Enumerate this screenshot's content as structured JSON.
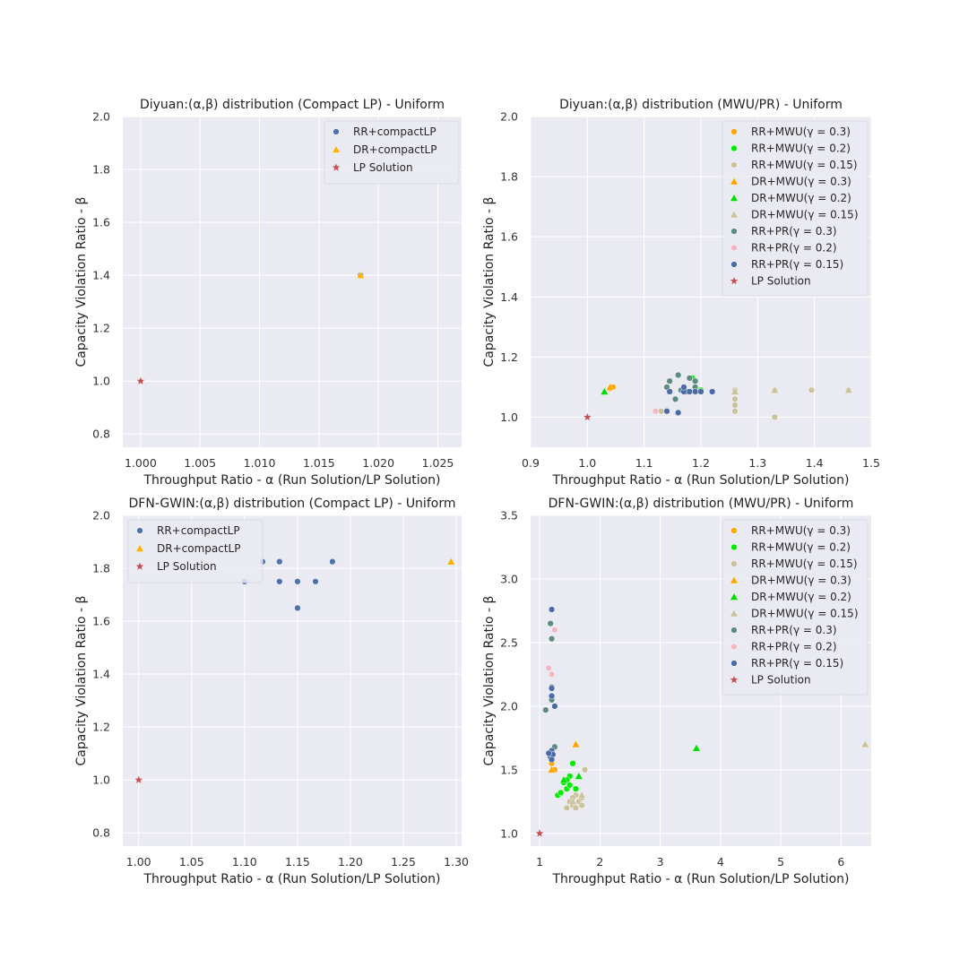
{
  "colors": {
    "plot_bg": "#eaeaf2",
    "grid": "#ffffff",
    "legend_bg": "#eaeaf2",
    "legend_edge": "#d6d6e0"
  },
  "chart_data": [
    {
      "type": "scatter",
      "title": "Diyuan:(α,β) distribution (Compact LP) - Uniform",
      "xlabel": "Throughput Ratio - α (Run Solution/LP Solution)",
      "ylabel": "Capacity Violation Ratio - β",
      "xlim": [
        0.9985,
        1.027
      ],
      "ylim": [
        0.75,
        2.0
      ],
      "xticks": [
        1.0,
        1.005,
        1.01,
        1.015,
        1.02,
        1.025
      ],
      "xtick_labels": [
        "1.000",
        "1.005",
        "1.010",
        "1.015",
        "1.020",
        "1.025"
      ],
      "yticks": [
        0.8,
        1.0,
        1.2,
        1.4,
        1.6,
        1.8,
        2.0
      ],
      "ytick_labels": [
        "0.8",
        "1.0",
        "1.2",
        "1.4",
        "1.6",
        "1.8",
        "2.0"
      ],
      "legend_position": "top-right",
      "series": [
        {
          "name": "RR+compactLP",
          "marker": "circle",
          "color": "#4c72b0",
          "points": [
            [
              1.0185,
              1.4
            ]
          ]
        },
        {
          "name": "DR+compactLP",
          "marker": "triangle",
          "color": "#ffb000",
          "points": [
            [
              1.0185,
              1.4
            ]
          ]
        },
        {
          "name": "LP Solution",
          "marker": "star",
          "color": "#c44e52",
          "points": [
            [
              1.0,
              1.0
            ]
          ]
        }
      ]
    },
    {
      "type": "scatter",
      "title": "Diyuan:(α,β) distribution (MWU/PR) - Uniform",
      "xlabel": "Throughput Ratio - α (Run Solution/LP Solution)",
      "ylabel": "Capacity Violation Ratio - β",
      "xlim": [
        0.9,
        1.5
      ],
      "ylim": [
        0.9,
        2.0
      ],
      "xticks": [
        0.9,
        1.0,
        1.1,
        1.2,
        1.3,
        1.4,
        1.5
      ],
      "xtick_labels": [
        "0.9",
        "1.0",
        "1.1",
        "1.2",
        "1.3",
        "1.4",
        "1.5"
      ],
      "yticks": [
        1.0,
        1.2,
        1.4,
        1.6,
        1.8,
        2.0
      ],
      "ytick_labels": [
        "1.0",
        "1.2",
        "1.4",
        "1.6",
        "1.8",
        "2.0"
      ],
      "legend_position": "top-right",
      "series": [
        {
          "name": "RR+MWU(γ = 0.3)",
          "marker": "circle",
          "color": "#ffa500",
          "points": [
            [
              1.04,
              1.095
            ],
            [
              1.045,
              1.1
            ]
          ]
        },
        {
          "name": "RR+MWU(γ = 0.2)",
          "marker": "circle",
          "color": "#00ee00",
          "points": [
            [
              1.19,
              1.1
            ],
            [
              1.185,
              1.13
            ],
            [
              1.2,
              1.09
            ]
          ]
        },
        {
          "name": "RR+MWU(γ = 0.15)",
          "marker": "circle",
          "color": "#c9c29c",
          "points": [
            [
              1.26,
              1.09
            ],
            [
              1.26,
              1.06
            ],
            [
              1.26,
              1.04
            ],
            [
              1.26,
              1.02
            ],
            [
              1.33,
              1.09
            ],
            [
              1.33,
              1.0
            ],
            [
              1.395,
              1.09
            ],
            [
              1.46,
              1.09
            ],
            [
              1.13,
              1.02
            ]
          ]
        },
        {
          "name": "DR+MWU(γ = 0.3)",
          "marker": "triangle",
          "color": "#ffa500",
          "points": [
            [
              1.04,
              1.1
            ]
          ]
        },
        {
          "name": "DR+MWU(γ = 0.2)",
          "marker": "triangle",
          "color": "#00dd00",
          "points": [
            [
              1.03,
              1.085
            ]
          ]
        },
        {
          "name": "DR+MWU(γ = 0.15)",
          "marker": "triangle",
          "color": "#c9c29c",
          "points": [
            [
              1.26,
              1.085
            ],
            [
              1.33,
              1.09
            ],
            [
              1.46,
              1.09
            ]
          ]
        },
        {
          "name": "RR+PR(γ = 0.3)",
          "marker": "circle",
          "color": "#5b8c7d",
          "points": [
            [
              1.16,
              1.14
            ],
            [
              1.18,
              1.13
            ],
            [
              1.19,
              1.12
            ],
            [
              1.19,
              1.1
            ],
            [
              1.175,
              1.085
            ],
            [
              1.14,
              1.1
            ],
            [
              1.155,
              1.06
            ],
            [
              1.145,
              1.12
            ],
            [
              1.165,
              1.09
            ]
          ]
        },
        {
          "name": "RR+PR(γ = 0.2)",
          "marker": "circle",
          "color": "#f4b6c2",
          "points": [
            [
              1.12,
              1.02
            ],
            [
              1.2,
              1.085
            ],
            [
              1.22,
              1.085
            ]
          ]
        },
        {
          "name": "RR+PR(γ = 0.15)",
          "marker": "circle",
          "color": "#4a6aa8",
          "points": [
            [
              1.16,
              1.015
            ],
            [
              1.14,
              1.02
            ],
            [
              1.145,
              1.085
            ],
            [
              1.17,
              1.085
            ],
            [
              1.18,
              1.085
            ],
            [
              1.19,
              1.085
            ],
            [
              1.2,
              1.085
            ],
            [
              1.22,
              1.085
            ],
            [
              1.17,
              1.1
            ]
          ]
        },
        {
          "name": "LP Solution",
          "marker": "star",
          "color": "#c44e52",
          "points": [
            [
              1.0,
              1.0
            ]
          ]
        }
      ]
    },
    {
      "type": "scatter",
      "title": "DFN-GWIN:(α,β) distribution (Compact LP) - Uniform",
      "xlabel": "Throughput Ratio - α (Run Solution/LP Solution)",
      "ylabel": "Capacity Violation Ratio - β",
      "xlim": [
        0.985,
        1.305
      ],
      "ylim": [
        0.75,
        2.0
      ],
      "xticks": [
        1.0,
        1.05,
        1.1,
        1.15,
        1.2,
        1.25,
        1.3
      ],
      "xtick_labels": [
        "1.00",
        "1.05",
        "1.10",
        "1.15",
        "1.20",
        "1.25",
        "1.30"
      ],
      "yticks": [
        0.8,
        1.0,
        1.2,
        1.4,
        1.6,
        1.8,
        2.0
      ],
      "ytick_labels": [
        "0.8",
        "1.0",
        "1.2",
        "1.4",
        "1.6",
        "1.8",
        "2.0"
      ],
      "legend_position": "top-left",
      "series": [
        {
          "name": "RR+compactLP",
          "marker": "circle",
          "color": "#4c72b0",
          "points": [
            [
              1.1,
              1.75
            ],
            [
              1.117,
              1.825
            ],
            [
              1.133,
              1.825
            ],
            [
              1.133,
              1.75
            ],
            [
              1.15,
              1.75
            ],
            [
              1.15,
              1.65
            ],
            [
              1.167,
              1.75
            ],
            [
              1.183,
              1.825
            ]
          ]
        },
        {
          "name": "DR+compactLP",
          "marker": "triangle",
          "color": "#ffb000",
          "points": [
            [
              1.295,
              1.825
            ]
          ]
        },
        {
          "name": "LP Solution",
          "marker": "star",
          "color": "#c44e52",
          "points": [
            [
              1.0,
              1.0
            ]
          ]
        }
      ]
    },
    {
      "type": "scatter",
      "title": "DFN-GWIN:(α,β) distribution (MWU/PR) - Uniform",
      "xlabel": "Throughput Ratio - α (Run Solution/LP Solution)",
      "ylabel": "Capacity Violation Ratio - β",
      "xlim": [
        0.85,
        6.5
      ],
      "ylim": [
        0.9,
        3.5
      ],
      "xticks": [
        1,
        2,
        3,
        4,
        5,
        6
      ],
      "xtick_labels": [
        "1",
        "2",
        "3",
        "4",
        "5",
        "6"
      ],
      "yticks": [
        1.0,
        1.5,
        2.0,
        2.5,
        3.0,
        3.5
      ],
      "ytick_labels": [
        "1.0",
        "1.5",
        "2.0",
        "2.5",
        "3.0",
        "3.5"
      ],
      "legend_position": "top-right",
      "series": [
        {
          "name": "RR+MWU(γ = 0.3)",
          "marker": "circle",
          "color": "#ffa500",
          "points": [
            [
              1.2,
              1.55
            ],
            [
              1.25,
              1.5
            ],
            [
              1.2,
              1.6
            ]
          ]
        },
        {
          "name": "RR+MWU(γ = 0.2)",
          "marker": "circle",
          "color": "#00ee00",
          "points": [
            [
              1.3,
              1.3
            ],
            [
              1.4,
              1.4
            ],
            [
              1.45,
              1.35
            ],
            [
              1.5,
              1.45
            ],
            [
              1.55,
              1.55
            ],
            [
              1.6,
              1.35
            ],
            [
              1.45,
              1.42
            ],
            [
              1.35,
              1.32
            ],
            [
              1.5,
              1.38
            ]
          ]
        },
        {
          "name": "RR+MWU(γ = 0.15)",
          "marker": "circle",
          "color": "#c9c29c",
          "points": [
            [
              1.5,
              1.25
            ],
            [
              1.55,
              1.22
            ],
            [
              1.6,
              1.3
            ],
            [
              1.65,
              1.25
            ],
            [
              1.7,
              1.28
            ],
            [
              1.75,
              1.5
            ],
            [
              1.45,
              1.2
            ],
            [
              1.6,
              1.2
            ],
            [
              1.7,
              1.22
            ],
            [
              1.55,
              1.28
            ]
          ]
        },
        {
          "name": "DR+MWU(γ = 0.3)",
          "marker": "triangle",
          "color": "#ffa500",
          "points": [
            [
              1.2,
              1.5
            ],
            [
              1.6,
              1.7
            ]
          ]
        },
        {
          "name": "DR+MWU(γ = 0.2)",
          "marker": "triangle",
          "color": "#00dd00",
          "points": [
            [
              1.4,
              1.42
            ],
            [
              1.65,
              1.45
            ],
            [
              3.6,
              1.67
            ]
          ]
        },
        {
          "name": "DR+MWU(γ = 0.15)",
          "marker": "triangle",
          "color": "#c9c29c",
          "points": [
            [
              1.55,
              1.25
            ],
            [
              1.7,
              1.3
            ],
            [
              6.4,
              1.7
            ]
          ]
        },
        {
          "name": "RR+PR(γ = 0.3)",
          "marker": "circle",
          "color": "#5b8c7d",
          "points": [
            [
              1.1,
              1.97
            ],
            [
              1.2,
              2.05
            ],
            [
              1.2,
              2.15
            ],
            [
              1.2,
              2.53
            ],
            [
              1.18,
              2.65
            ],
            [
              1.25,
              1.68
            ]
          ]
        },
        {
          "name": "RR+PR(γ = 0.2)",
          "marker": "circle",
          "color": "#f4b6c2",
          "points": [
            [
              1.15,
              2.3
            ],
            [
              1.2,
              2.25
            ],
            [
              1.25,
              2.6
            ]
          ]
        },
        {
          "name": "RR+PR(γ = 0.15)",
          "marker": "circle",
          "color": "#4a6aa8",
          "points": [
            [
              1.2,
              2.76
            ],
            [
              1.2,
              2.14
            ],
            [
              1.2,
              2.08
            ],
            [
              1.18,
              1.6
            ],
            [
              1.2,
              1.65
            ],
            [
              1.22,
              1.62
            ],
            [
              1.2,
              1.58
            ],
            [
              1.15,
              1.63
            ],
            [
              1.25,
              2.0
            ]
          ]
        },
        {
          "name": "LP Solution",
          "marker": "star",
          "color": "#c44e52",
          "points": [
            [
              1.0,
              1.0
            ]
          ]
        }
      ]
    }
  ]
}
